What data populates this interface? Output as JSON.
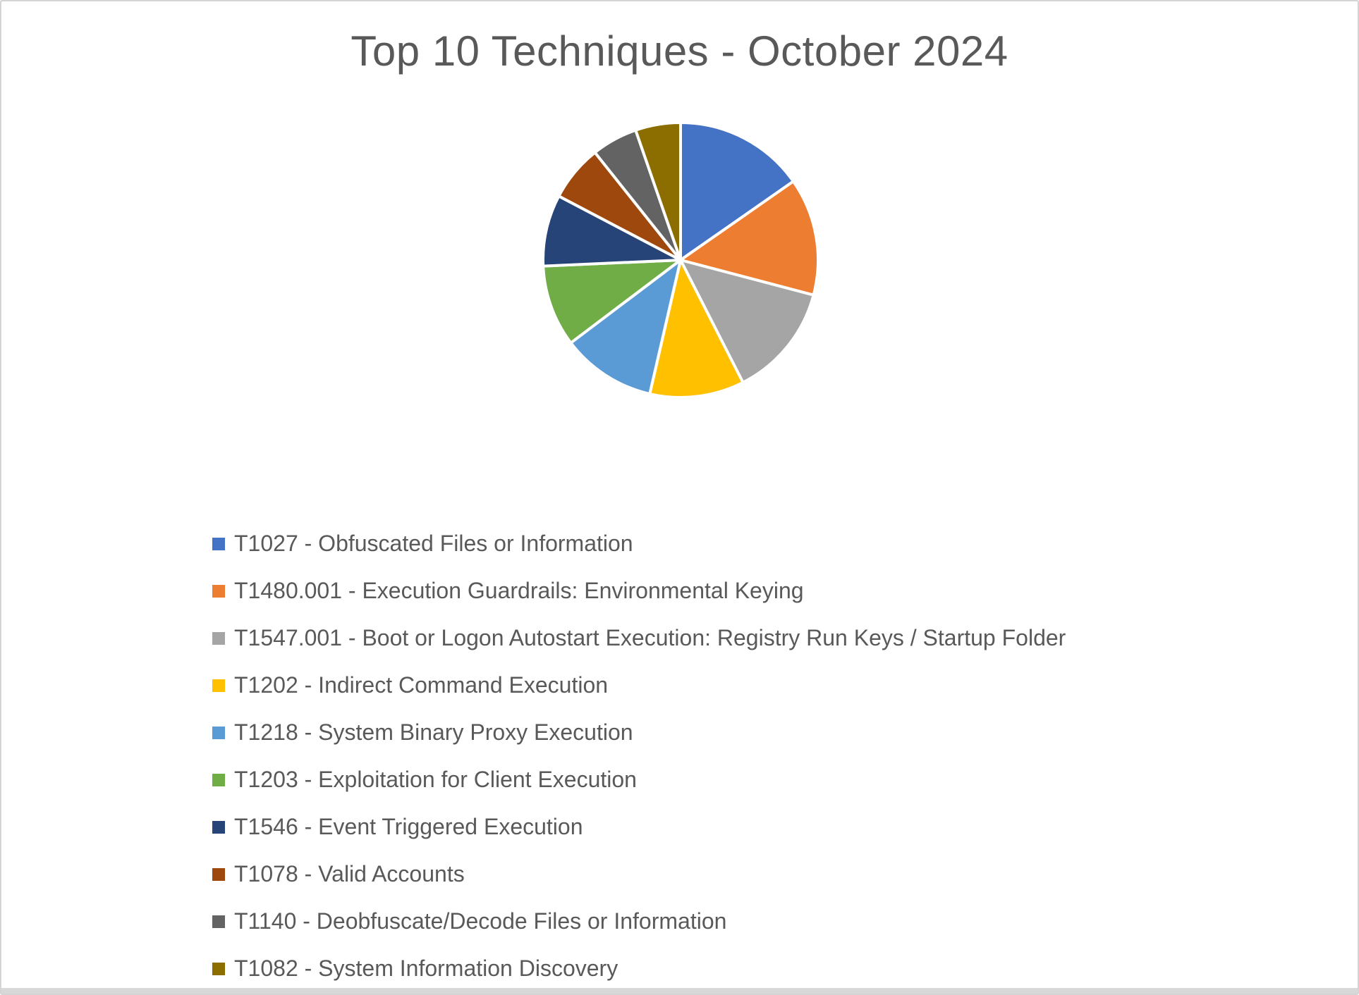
{
  "title": "Top 10 Techniques - October 2024",
  "chart_data": {
    "type": "pie",
    "title": "Top 10 Techniques - October 2024",
    "start_angle_deg": 0,
    "direction": "clockwise",
    "legend_position": "bottom-left",
    "gap_color": "#FFFFFF",
    "slices": [
      {
        "label": "T1027 - Obfuscated Files or Information",
        "value_pct": 15.3,
        "color": "#4472C4"
      },
      {
        "label": "T1480.001 - Execution Guardrails: Environmental Keying",
        "value_pct": 13.8,
        "color": "#ED7D31"
      },
      {
        "label": "T1547.001 - Boot or Logon Autostart Execution: Registry Run Keys / Startup Folder",
        "value_pct": 13.4,
        "color": "#A5A5A5"
      },
      {
        "label": "T1202 - Indirect Command Execution",
        "value_pct": 11.1,
        "color": "#FFC000"
      },
      {
        "label": "T1218 - System Binary Proxy Execution",
        "value_pct": 11.1,
        "color": "#5B9BD5"
      },
      {
        "label": "T1203 - Exploitation for Client Execution",
        "value_pct": 9.6,
        "color": "#70AD47"
      },
      {
        "label": "T1546 - Event Triggered Execution",
        "value_pct": 8.4,
        "color": "#264478"
      },
      {
        "label": "T1078 - Valid Accounts",
        "value_pct": 6.6,
        "color": "#9E480E"
      },
      {
        "label": "T1140 - Deobfuscate/Decode Files or Information",
        "value_pct": 5.4,
        "color": "#636363"
      },
      {
        "label": "T1082 - System Information Discovery",
        "value_pct": 5.3,
        "color": "#8B6D00"
      }
    ]
  },
  "colors": {
    "text": "#595959",
    "background": "#FFFFFF",
    "border": "#D4D4D4"
  }
}
